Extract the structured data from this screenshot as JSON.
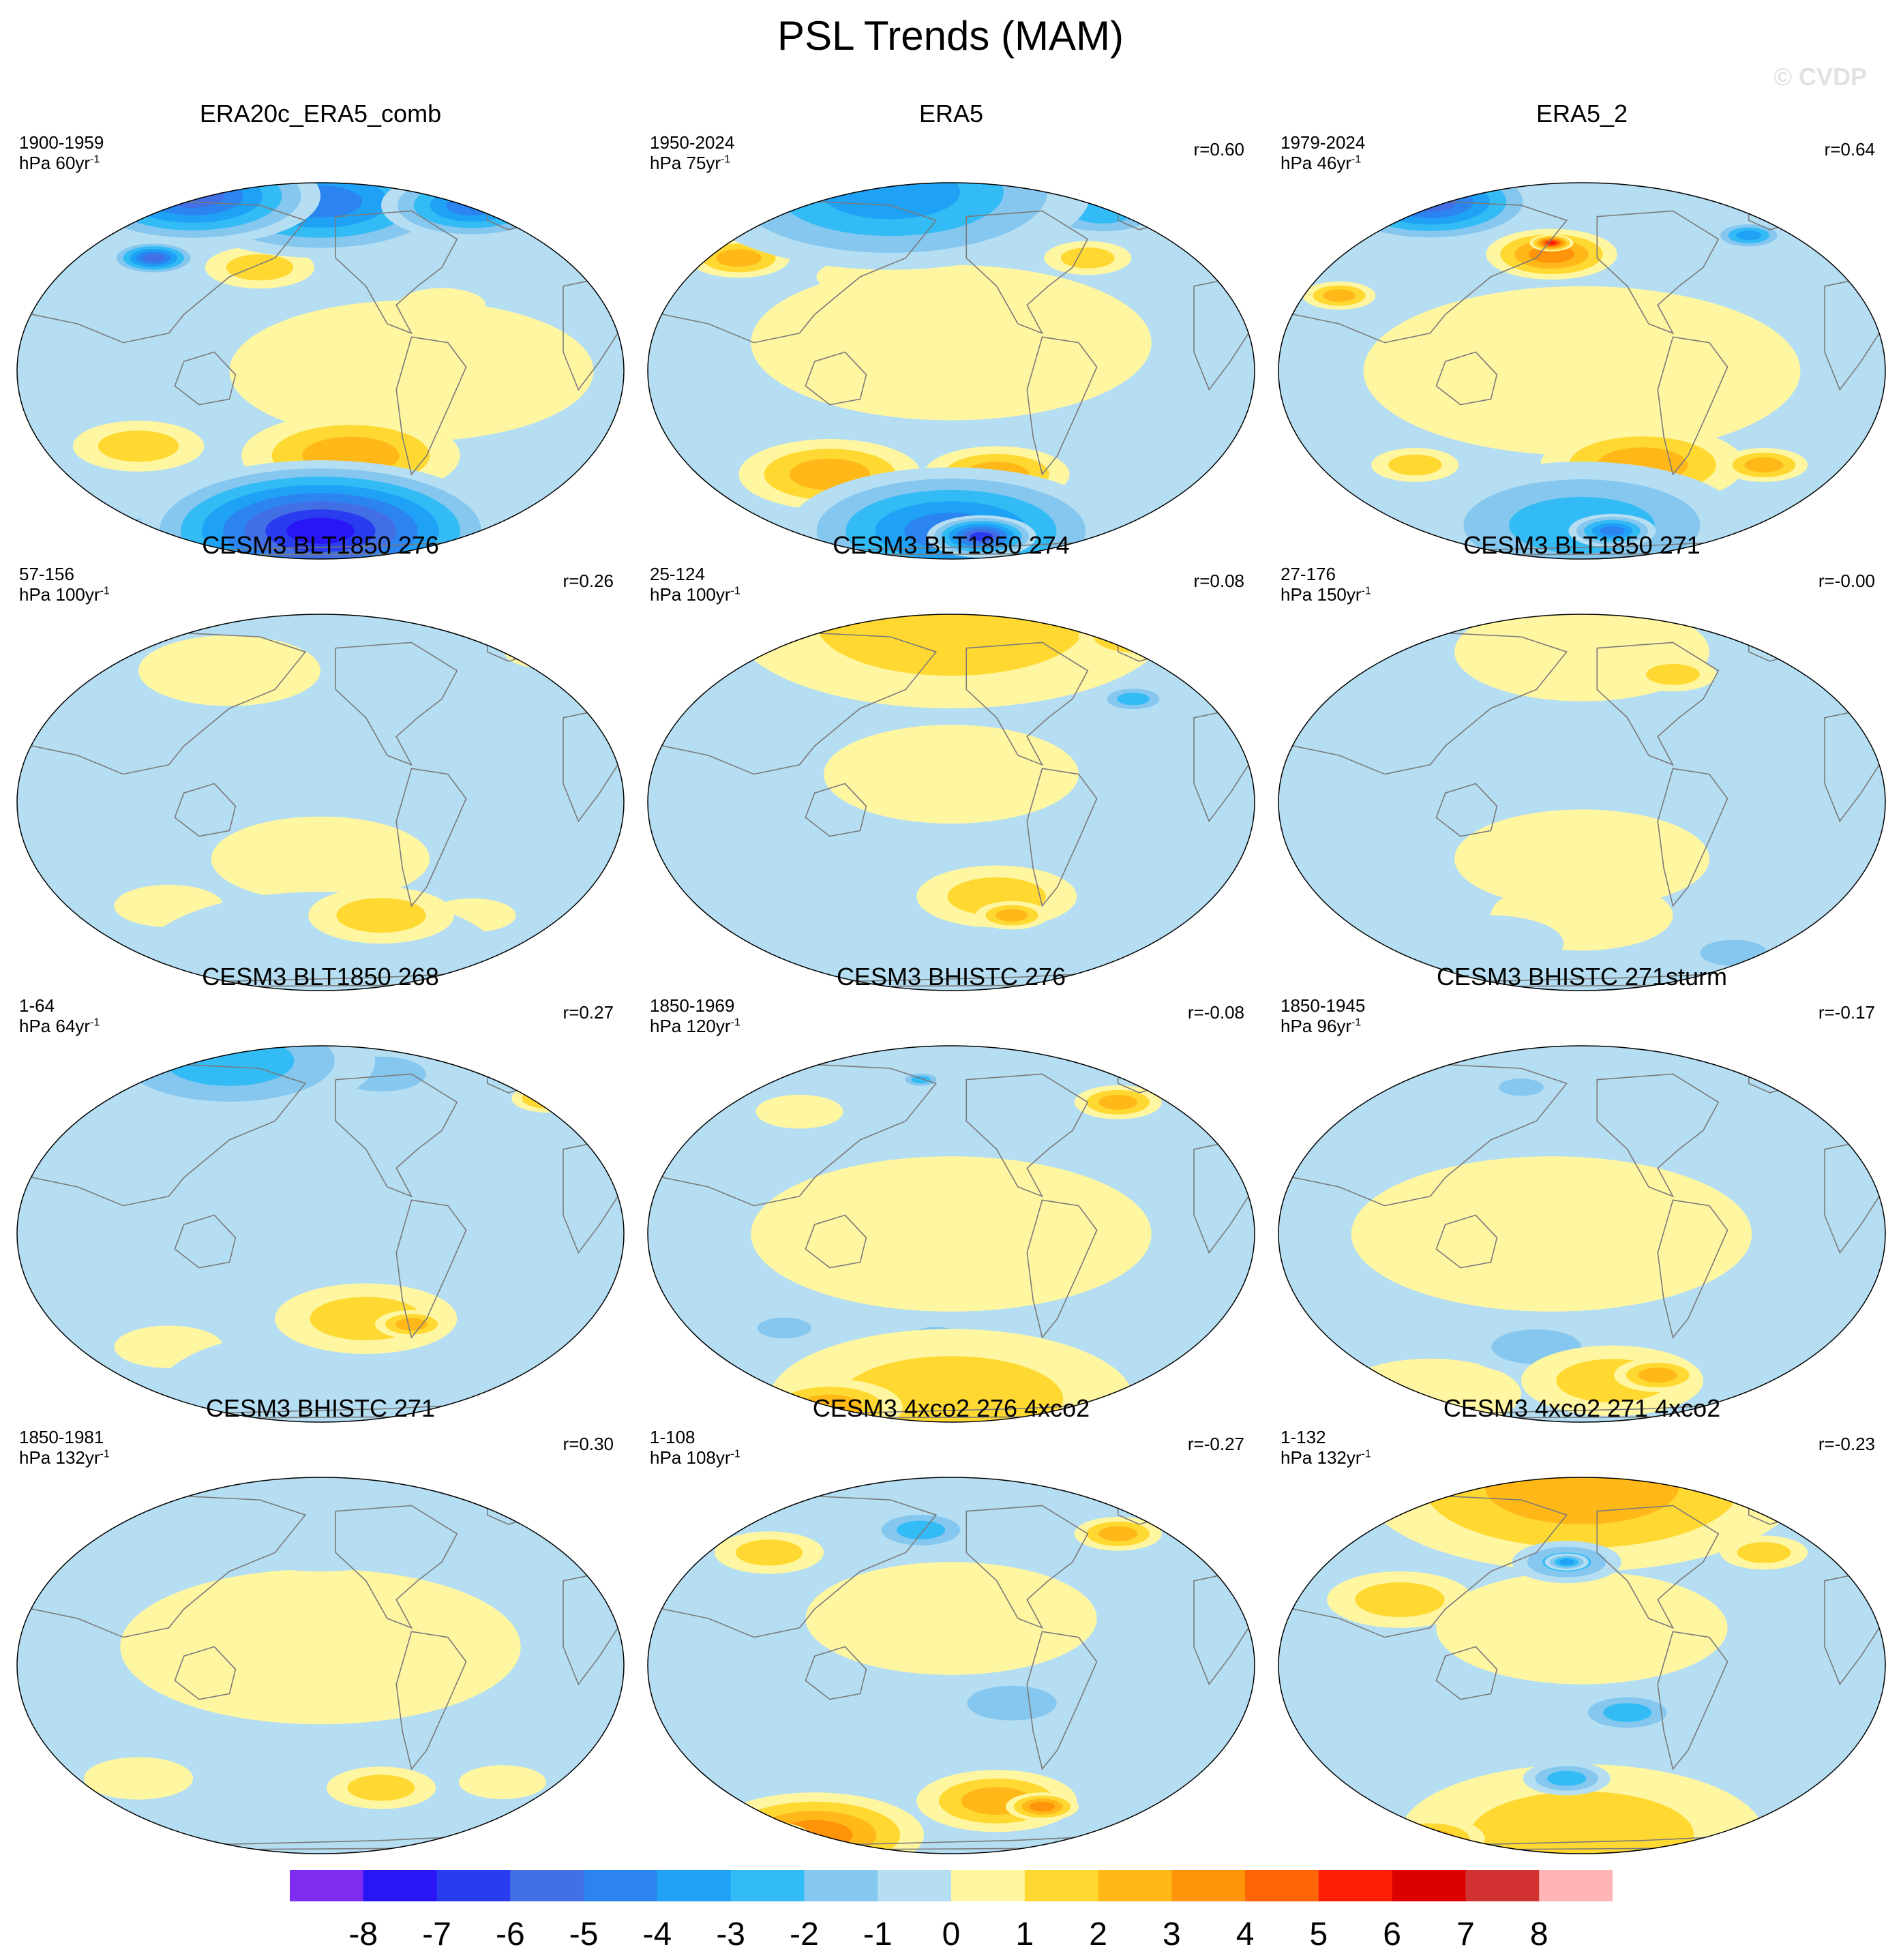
{
  "title": "PSL Trends (MAM)",
  "watermark": "© CVDP",
  "panels": [
    {
      "title": "ERA20c_ERA5_comb",
      "period": "1900-1959",
      "units": "hPa 60yr",
      "exp": "-1",
      "corr": "",
      "features": [
        [
          -0.42,
          0.93,
          0.35,
          -6
        ],
        [
          0.0,
          0.9,
          0.4,
          -5
        ],
        [
          0.5,
          0.88,
          0.25,
          -5
        ],
        [
          -0.55,
          0.6,
          0.12,
          -6
        ],
        [
          -0.2,
          0.55,
          0.15,
          2
        ],
        [
          0.4,
          0.35,
          0.12,
          1
        ],
        [
          -0.6,
          -0.4,
          0.18,
          2
        ],
        [
          0.1,
          -0.45,
          0.3,
          3
        ],
        [
          0.0,
          -0.85,
          0.5,
          -8
        ],
        [
          -0.5,
          -0.9,
          0.2,
          -7
        ],
        [
          0.3,
          0.0,
          0.5,
          0.4
        ]
      ]
    },
    {
      "title": "ERA5",
      "period": "1950-2024",
      "units": "hPa 75yr",
      "exp": "-1",
      "corr": "r=0.60",
      "features": [
        [
          -0.2,
          0.95,
          0.55,
          -4
        ],
        [
          0.5,
          0.85,
          0.2,
          -3
        ],
        [
          -0.7,
          0.6,
          0.14,
          3
        ],
        [
          -0.3,
          0.5,
          0.12,
          1
        ],
        [
          0.45,
          0.6,
          0.12,
          2
        ],
        [
          -0.4,
          -0.55,
          0.25,
          3
        ],
        [
          0.15,
          -0.55,
          0.2,
          3
        ],
        [
          0.0,
          -0.85,
          0.45,
          -5
        ],
        [
          0.1,
          -0.88,
          0.15,
          -7
        ],
        [
          0.0,
          0.15,
          0.55,
          0.4
        ]
      ]
    },
    {
      "title": "ERA5_2",
      "period": "1979-2024",
      "units": "hPa 46yr",
      "exp": "-1",
      "corr": "r=0.64",
      "features": [
        [
          -0.5,
          0.9,
          0.3,
          -6
        ],
        [
          -0.1,
          0.62,
          0.18,
          4
        ],
        [
          -0.1,
          0.68,
          0.06,
          6
        ],
        [
          0.55,
          0.72,
          0.1,
          -4
        ],
        [
          -0.8,
          0.4,
          0.1,
          3
        ],
        [
          0.2,
          -0.5,
          0.28,
          3
        ],
        [
          -0.55,
          -0.5,
          0.12,
          2
        ],
        [
          0.6,
          -0.5,
          0.12,
          3
        ],
        [
          0.0,
          -0.82,
          0.45,
          -3
        ],
        [
          0.1,
          -0.85,
          0.12,
          -5
        ],
        [
          0.0,
          0.0,
          0.6,
          0.4
        ]
      ]
    },
    {
      "title": "CESM3 BLT1850 276",
      "period": "57-156",
      "units": "hPa 100yr",
      "exp": "-1",
      "corr": "r=0.26",
      "features": [
        [
          0.75,
          0.8,
          0.12,
          2
        ],
        [
          -0.3,
          0.7,
          0.25,
          0.5
        ],
        [
          0.0,
          -0.3,
          0.3,
          0.5
        ],
        [
          0.2,
          -0.6,
          0.2,
          2
        ],
        [
          -0.5,
          -0.55,
          0.15,
          1
        ],
        [
          0.5,
          -0.6,
          0.12,
          1
        ],
        [
          0.0,
          -0.85,
          0.5,
          -1
        ]
      ]
    },
    {
      "title": "CESM3 BLT1850 274",
      "period": "25-124",
      "units": "hPa 100yr",
      "exp": "-1",
      "corr": "r=0.08",
      "features": [
        [
          0.0,
          0.95,
          0.6,
          2
        ],
        [
          0.6,
          0.88,
          0.15,
          3
        ],
        [
          0.6,
          0.55,
          0.1,
          -3
        ],
        [
          0.15,
          -0.5,
          0.22,
          2
        ],
        [
          0.2,
          -0.6,
          0.1,
          3
        ],
        [
          -0.2,
          -0.75,
          0.3,
          -1
        ],
        [
          0.0,
          -0.85,
          0.5,
          -1
        ],
        [
          0.0,
          0.15,
          0.35,
          0.5
        ]
      ]
    },
    {
      "title": "CESM3 BLT1850 271",
      "period": "27-176",
      "units": "hPa 150yr",
      "exp": "-1",
      "corr": "r=-0.00",
      "features": [
        [
          0.0,
          0.8,
          0.35,
          0.5
        ],
        [
          0.3,
          0.68,
          0.12,
          2
        ],
        [
          0.0,
          -0.3,
          0.35,
          0.5
        ],
        [
          0.0,
          -0.6,
          0.25,
          1
        ],
        [
          0.5,
          -0.8,
          0.15,
          -2
        ],
        [
          -0.3,
          -0.75,
          0.2,
          -1
        ]
      ]
    },
    {
      "title": "CESM3 BLT1850 268",
      "period": "1-64",
      "units": "hPa 64yr",
      "exp": "-1",
      "corr": "r=0.27",
      "features": [
        [
          -0.3,
          0.92,
          0.4,
          -3
        ],
        [
          0.2,
          0.85,
          0.2,
          -2
        ],
        [
          0.75,
          0.72,
          0.1,
          3
        ],
        [
          -0.1,
          0.4,
          0.15,
          -1
        ],
        [
          0.15,
          -0.45,
          0.25,
          2
        ],
        [
          0.3,
          -0.48,
          0.1,
          3
        ],
        [
          -0.5,
          -0.6,
          0.15,
          1
        ],
        [
          0.0,
          -0.85,
          0.45,
          -1
        ]
      ]
    },
    {
      "title": "CESM3 BHISTC 276",
      "period": "1850-1969",
      "units": "hPa 120yr",
      "exp": "-1",
      "corr": "r=-0.08",
      "features": [
        [
          -0.2,
          0.8,
          0.3,
          -1
        ],
        [
          -0.1,
          0.82,
          0.06,
          -3
        ],
        [
          0.55,
          0.7,
          0.12,
          3
        ],
        [
          -0.5,
          0.65,
          0.12,
          1
        ],
        [
          0.0,
          0.0,
          0.55,
          0.5
        ],
        [
          -0.55,
          -0.5,
          0.12,
          -2
        ],
        [
          -0.05,
          -0.55,
          0.12,
          -2
        ],
        [
          0.0,
          -0.88,
          0.5,
          2
        ],
        [
          -0.4,
          -0.92,
          0.2,
          3
        ]
      ]
    },
    {
      "title": "CESM3 BHISTC 271sturm",
      "period": "1850-1945",
      "units": "hPa 96yr",
      "exp": "-1",
      "corr": "r=-0.17",
      "features": [
        [
          0.0,
          0.82,
          0.35,
          -1
        ],
        [
          -0.2,
          0.78,
          0.1,
          -2
        ],
        [
          -0.1,
          0.0,
          0.55,
          0.5
        ],
        [
          -0.15,
          -0.6,
          0.2,
          -2
        ],
        [
          0.1,
          -0.78,
          0.25,
          2
        ],
        [
          0.25,
          -0.75,
          0.12,
          3
        ],
        [
          -0.5,
          -0.85,
          0.25,
          1
        ]
      ]
    },
    {
      "title": "CESM3 BHISTC 271",
      "period": "1850-1981",
      "units": "hPa 132yr",
      "exp": "-1",
      "corr": "r=0.30",
      "features": [
        [
          0.0,
          0.8,
          0.4,
          -1
        ],
        [
          0.0,
          0.1,
          0.55,
          0.5
        ],
        [
          0.2,
          -0.65,
          0.15,
          2
        ],
        [
          -0.6,
          -0.6,
          0.15,
          1
        ],
        [
          0.6,
          -0.62,
          0.12,
          1
        ],
        [
          0.0,
          -0.85,
          0.45,
          -1
        ]
      ]
    },
    {
      "title": "CESM3 4xco2 276 4xco2",
      "period": "1-108",
      "units": "hPa 108yr",
      "exp": "-1",
      "corr": "r=-0.27",
      "features": [
        [
          -0.1,
          0.72,
          0.15,
          -3
        ],
        [
          -0.6,
          0.6,
          0.15,
          2
        ],
        [
          0.55,
          0.7,
          0.12,
          3
        ],
        [
          0.0,
          0.25,
          0.4,
          1
        ],
        [
          0.2,
          -0.2,
          0.2,
          -2
        ],
        [
          -0.1,
          -0.5,
          0.2,
          -1
        ],
        [
          0.15,
          -0.72,
          0.22,
          3
        ],
        [
          0.3,
          -0.75,
          0.1,
          4
        ],
        [
          -0.45,
          -0.9,
          0.3,
          4
        ],
        [
          -0.6,
          -0.92,
          0.12,
          5
        ]
      ]
    },
    {
      "title": "CESM3 4xco2 271 4xco2",
      "period": "1-132",
      "units": "hPa 132yr",
      "exp": "-1",
      "corr": "r=-0.23",
      "features": [
        [
          0.0,
          0.95,
          0.6,
          3
        ],
        [
          -0.05,
          0.55,
          0.15,
          -3
        ],
        [
          -0.05,
          0.55,
          0.06,
          -4
        ],
        [
          0.6,
          0.6,
          0.12,
          2
        ],
        [
          -0.6,
          0.35,
          0.2,
          2
        ],
        [
          0.15,
          -0.25,
          0.15,
          -3
        ],
        [
          -0.05,
          -0.6,
          0.12,
          -3
        ],
        [
          0.0,
          -0.9,
          0.5,
          2
        ],
        [
          -0.5,
          -0.92,
          0.15,
          3
        ],
        [
          0.0,
          0.2,
          0.4,
          1
        ]
      ]
    }
  ],
  "colorbar": {
    "labels": [
      "-8",
      "-7",
      "-6",
      "-5",
      "-4",
      "-3",
      "-2",
      "-1",
      "0",
      "1",
      "2",
      "3",
      "4",
      "5",
      "6",
      "7",
      "8"
    ],
    "colors": [
      "#7e2cf0",
      "#2816f6",
      "#2a3cf0",
      "#4270e4",
      "#2b84f0",
      "#1fa2f6",
      "#33bbf6",
      "#86c7ef",
      "#b5def2",
      "#fff6a2",
      "#ffd932",
      "#ffb818",
      "#ff930a",
      "#ff6406",
      "#ff1e06",
      "#dc0000",
      "#d23131",
      "#ffb5b5"
    ]
  }
}
